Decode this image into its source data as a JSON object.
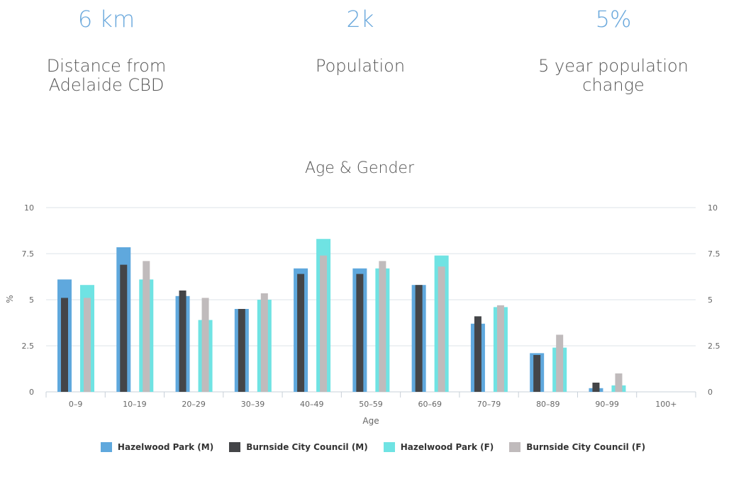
{
  "stats": [
    {
      "value": "6 km",
      "label": "Distance from Adelaide CBD"
    },
    {
      "value": "2k",
      "label": "Population"
    },
    {
      "value": "5%",
      "label": "5 year population change"
    }
  ],
  "chart_data": {
    "type": "bar",
    "title": "Age & Gender",
    "xlabel": "Age",
    "ylabel": "%",
    "ylim": [
      0,
      10
    ],
    "yticks": [
      "0",
      "2.5",
      "5",
      "7.5",
      "10"
    ],
    "yticks_values": [
      0,
      2.5,
      5,
      7.5,
      10
    ],
    "categories": [
      "0–9",
      "10–19",
      "20–29",
      "30–39",
      "40–49",
      "50–59",
      "60–69",
      "70–79",
      "80–89",
      "90–99",
      "100+"
    ],
    "series": [
      {
        "name": "Hazelwood Park (M)",
        "color": "#5fa8dd",
        "values": [
          6.1,
          7.85,
          5.2,
          4.5,
          6.7,
          6.7,
          5.8,
          3.7,
          2.1,
          0.2,
          0
        ]
      },
      {
        "name": "Burnside City Council (M)",
        "color": "#444548",
        "values": [
          5.1,
          6.9,
          5.5,
          4.5,
          6.4,
          6.4,
          5.8,
          4.1,
          2.0,
          0.5,
          0
        ]
      },
      {
        "name": "Hazelwood Park (F)",
        "color": "#6fe3e3",
        "values": [
          5.8,
          6.1,
          3.9,
          5.0,
          8.3,
          6.7,
          7.4,
          4.6,
          2.4,
          0.35,
          0
        ]
      },
      {
        "name": "Burnside City Council (F)",
        "color": "#c0bbbc",
        "values": [
          5.1,
          7.1,
          5.1,
          5.35,
          7.4,
          7.1,
          6.8,
          4.7,
          3.1,
          1.0,
          0
        ]
      }
    ]
  }
}
